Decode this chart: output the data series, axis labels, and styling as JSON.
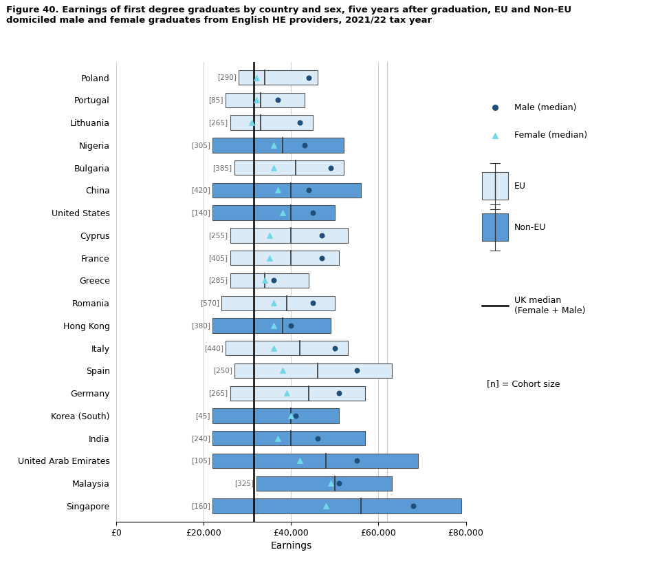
{
  "title": "Figure 40. Earnings of first degree graduates by country and sex, five years after graduation, EU and Non-EU\ndomiciled male and female graduates from English HE providers, 2021/22 tax year",
  "xlabel": "Earnings",
  "uk_median": 31500,
  "countries": [
    "Poland",
    "Portugal",
    "Lithuania",
    "Nigeria",
    "Bulgaria",
    "China",
    "United States",
    "Cyprus",
    "France",
    "Greece",
    "Romania",
    "Hong Kong",
    "Italy",
    "Spain",
    "Germany",
    "Korea (South)",
    "India",
    "United Arab Emirates",
    "Malaysia",
    "Singapore"
  ],
  "cohort_sizes": [
    290,
    85,
    265,
    305,
    385,
    420,
    140,
    255,
    405,
    285,
    570,
    380,
    440,
    250,
    265,
    45,
    240,
    105,
    325,
    160
  ],
  "is_eu": [
    true,
    true,
    true,
    false,
    true,
    false,
    false,
    true,
    true,
    true,
    true,
    false,
    true,
    true,
    true,
    false,
    false,
    false,
    false,
    false
  ],
  "q1": [
    28000,
    25000,
    26000,
    22000,
    27000,
    22000,
    22000,
    26000,
    26000,
    26000,
    24000,
    22000,
    25000,
    27000,
    26000,
    22000,
    22000,
    22000,
    32000,
    22000
  ],
  "q3": [
    46000,
    43000,
    45000,
    52000,
    52000,
    56000,
    50000,
    53000,
    51000,
    44000,
    50000,
    49000,
    53000,
    63000,
    57000,
    51000,
    57000,
    69000,
    63000,
    79000
  ],
  "male_median": [
    44000,
    37000,
    42000,
    43000,
    49000,
    44000,
    45000,
    47000,
    47000,
    36000,
    45000,
    40000,
    50000,
    55000,
    51000,
    41000,
    46000,
    55000,
    51000,
    68000
  ],
  "female_median": [
    32000,
    32000,
    31000,
    36000,
    36000,
    37000,
    38000,
    35000,
    35000,
    34000,
    36000,
    36000,
    36000,
    38000,
    39000,
    40000,
    37000,
    42000,
    49000,
    48000
  ],
  "median_line": [
    34000,
    33000,
    33000,
    38000,
    41000,
    40000,
    40000,
    40000,
    40000,
    34000,
    39000,
    38000,
    42000,
    46000,
    44000,
    40000,
    40000,
    48000,
    50000,
    56000
  ],
  "eu_color": "#daeaf7",
  "noneu_color": "#5b9bd5",
  "edge_color": "#555555",
  "male_dot_color": "#1f4e79",
  "female_tri_color": "#70d8e8",
  "xlim": [
    0,
    80000
  ],
  "xticks": [
    0,
    20000,
    40000,
    60000,
    80000
  ],
  "xtick_labels": [
    "£0",
    "£20,000",
    "£40,000",
    "£60,000",
    "£80,000"
  ],
  "bar_height": 0.65,
  "grid_color": "#cccccc",
  "vertical_line_x": 62000
}
